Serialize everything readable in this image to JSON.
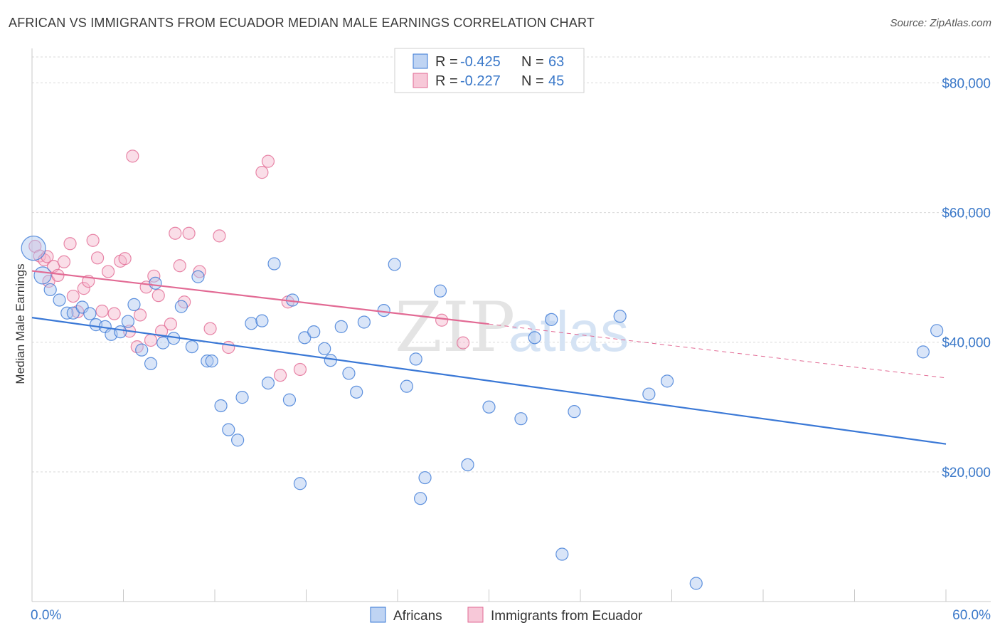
{
  "header": {
    "title": "AFRICAN VS IMMIGRANTS FROM ECUADOR MEDIAN MALE EARNINGS CORRELATION CHART",
    "source": "Source: ZipAtlas.com"
  },
  "colors": {
    "blue": "#3a78d6",
    "blue_fill": "#aac6ef",
    "pink": "#e26a94",
    "pink_fill": "#f4b6cb",
    "tick_label": "#3a78c9",
    "grid": "#d9d9d9"
  },
  "legend": {
    "rows": [
      {
        "r_label": "R =",
        "r_value": "-0.425",
        "n_label": "N =",
        "n_value": "63"
      },
      {
        "r_label": "R =",
        "r_value": "-0.227",
        "n_label": "N =",
        "n_value": "45"
      }
    ]
  },
  "bottom_legend": {
    "items": [
      {
        "label": "Africans"
      },
      {
        "label": "Immigrants from Ecuador"
      }
    ]
  },
  "watermark": {
    "zip": "ZIP",
    "atlas": "atlas"
  },
  "chart_data": {
    "type": "scatter",
    "title": "AFRICAN VS IMMIGRANTS FROM ECUADOR MEDIAN MALE EARNINGS CORRELATION CHART",
    "ylabel": "Median Male Earnings",
    "xlabel": "",
    "xlim": [
      0,
      60
    ],
    "ylim": [
      0,
      84000
    ],
    "x_tick_labels": [
      "0.0%",
      "60.0%"
    ],
    "y_ticks": [
      20000,
      40000,
      60000,
      80000
    ],
    "y_tick_labels": [
      "$20,000",
      "$40,000",
      "$60,000",
      "$80,000"
    ],
    "grid": true,
    "legend_position": "top-center",
    "series": [
      {
        "name": "Africans",
        "r": -0.425,
        "n": 63,
        "trend": {
          "x0": 0,
          "y0": 43800,
          "x1": 60,
          "y1": 24300,
          "dashed_to": 60
        },
        "points": [
          [
            0.1,
            54500
          ],
          [
            0.7,
            50300
          ],
          [
            1.2,
            48100
          ],
          [
            1.8,
            46500
          ],
          [
            2.3,
            44500
          ],
          [
            2.7,
            44500
          ],
          [
            3.3,
            45400
          ],
          [
            3.8,
            44400
          ],
          [
            4.2,
            42700
          ],
          [
            4.8,
            42400
          ],
          [
            5.2,
            41200
          ],
          [
            5.8,
            41600
          ],
          [
            6.3,
            43200
          ],
          [
            6.7,
            45800
          ],
          [
            7.2,
            38800
          ],
          [
            7.8,
            36700
          ],
          [
            8.1,
            49100
          ],
          [
            8.6,
            39900
          ],
          [
            9.3,
            40600
          ],
          [
            9.8,
            45500
          ],
          [
            10.5,
            39300
          ],
          [
            10.9,
            50100
          ],
          [
            11.5,
            37100
          ],
          [
            11.8,
            37100
          ],
          [
            12.4,
            30200
          ],
          [
            12.9,
            26500
          ],
          [
            13.5,
            24900
          ],
          [
            13.8,
            31500
          ],
          [
            14.4,
            42900
          ],
          [
            15.1,
            43300
          ],
          [
            15.5,
            33700
          ],
          [
            15.9,
            52100
          ],
          [
            16.9,
            31100
          ],
          [
            17.1,
            46500
          ],
          [
            17.6,
            18200
          ],
          [
            17.9,
            40700
          ],
          [
            18.5,
            41600
          ],
          [
            19.2,
            39000
          ],
          [
            19.6,
            37200
          ],
          [
            20.3,
            42400
          ],
          [
            20.8,
            35200
          ],
          [
            21.3,
            32300
          ],
          [
            21.8,
            43100
          ],
          [
            23.1,
            44900
          ],
          [
            23.8,
            52000
          ],
          [
            24.6,
            33200
          ],
          [
            25.2,
            37400
          ],
          [
            25.5,
            15900
          ],
          [
            25.8,
            19100
          ],
          [
            26.8,
            47900
          ],
          [
            28.6,
            21100
          ],
          [
            30.0,
            30000
          ],
          [
            32.1,
            28200
          ],
          [
            33.0,
            40700
          ],
          [
            34.1,
            43500
          ],
          [
            34.8,
            7300
          ],
          [
            35.6,
            29300
          ],
          [
            38.6,
            44000
          ],
          [
            40.5,
            32000
          ],
          [
            41.7,
            34000
          ],
          [
            43.6,
            2800
          ],
          [
            58.5,
            38500
          ],
          [
            59.4,
            41800
          ]
        ]
      },
      {
        "name": "Immigrants from Ecuador",
        "r": -0.227,
        "n": 45,
        "trend": {
          "x0": 0,
          "y0": 51000,
          "x1": 30,
          "y1": 42800,
          "dashed_to": 60,
          "dashed_end_y": 34500
        },
        "points": [
          [
            0.2,
            54800
          ],
          [
            0.5,
            53300
          ],
          [
            0.8,
            52700
          ],
          [
            1.1,
            49400
          ],
          [
            1.4,
            51700
          ],
          [
            1.7,
            50300
          ],
          [
            2.1,
            52400
          ],
          [
            2.5,
            55200
          ],
          [
            2.7,
            47100
          ],
          [
            3.0,
            44700
          ],
          [
            3.4,
            48300
          ],
          [
            3.7,
            49400
          ],
          [
            4.0,
            55700
          ],
          [
            4.3,
            53000
          ],
          [
            4.6,
            44800
          ],
          [
            5.0,
            50900
          ],
          [
            5.4,
            44400
          ],
          [
            5.8,
            52500
          ],
          [
            6.1,
            52900
          ],
          [
            6.4,
            41700
          ],
          [
            6.6,
            68700
          ],
          [
            6.9,
            39300
          ],
          [
            7.1,
            44200
          ],
          [
            7.5,
            48500
          ],
          [
            7.8,
            40300
          ],
          [
            8.0,
            50200
          ],
          [
            8.3,
            47200
          ],
          [
            8.5,
            41700
          ],
          [
            9.1,
            42800
          ],
          [
            9.4,
            56800
          ],
          [
            9.7,
            51800
          ],
          [
            10.0,
            46200
          ],
          [
            10.3,
            56800
          ],
          [
            11.0,
            50900
          ],
          [
            11.7,
            42100
          ],
          [
            12.3,
            56400
          ],
          [
            12.9,
            39200
          ],
          [
            15.1,
            66200
          ],
          [
            15.5,
            67900
          ],
          [
            16.3,
            34900
          ],
          [
            16.8,
            46200
          ],
          [
            17.6,
            35800
          ],
          [
            26.9,
            43400
          ],
          [
            28.3,
            39900
          ],
          [
            1.0,
            53200
          ]
        ]
      }
    ]
  }
}
